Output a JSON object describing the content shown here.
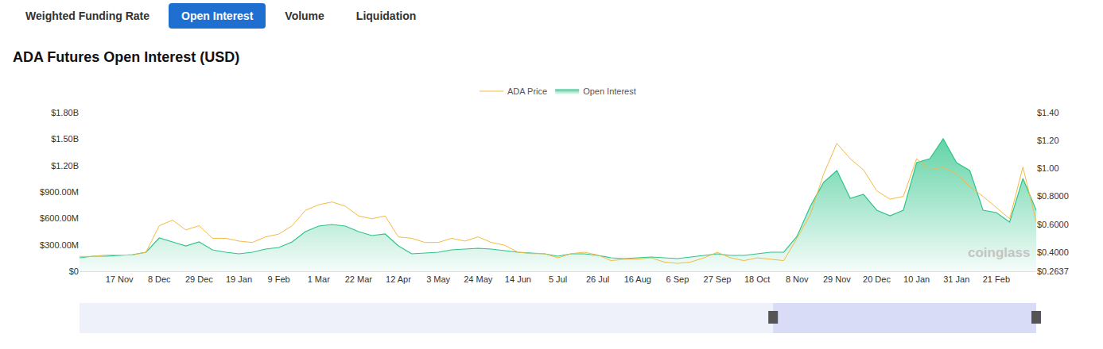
{
  "tabs": [
    "Weighted Funding Rate",
    "Open Interest",
    "Volume",
    "Liquidation"
  ],
  "active_tab": "Open Interest",
  "watermark": "coinglass",
  "chart_data": {
    "type": "line",
    "title": "ADA Futures Open Interest (USD)",
    "legend": "top",
    "grid": false,
    "categories": [
      null,
      null,
      null,
      "17 Nov",
      null,
      null,
      "8 Dec",
      null,
      null,
      "29 Dec",
      null,
      null,
      "19 Jan",
      null,
      null,
      "9 Feb",
      null,
      null,
      "1 Mar",
      null,
      null,
      "22 Mar",
      null,
      null,
      "12 Apr",
      null,
      null,
      "3 May",
      null,
      null,
      "24 May",
      null,
      null,
      "14 Jun",
      null,
      null,
      "5 Jul",
      null,
      null,
      "26 Jul",
      null,
      null,
      "16 Aug",
      null,
      null,
      "6 Sep",
      null,
      null,
      "27 Sep",
      null,
      null,
      "18 Oct",
      null,
      null,
      "8 Nov",
      null,
      null,
      "29 Nov",
      null,
      null,
      "20 Dec",
      null,
      null,
      "10 Jan",
      null,
      null,
      "31 Jan",
      null,
      null,
      "21 Feb",
      null,
      null,
      null
    ],
    "ylim": [
      0,
      1800000000
    ],
    "yticks": [
      {
        "value": 0,
        "label": "$0"
      },
      {
        "value": 300000000,
        "label": "$300.00M"
      },
      {
        "value": 600000000,
        "label": "$600.00M"
      },
      {
        "value": 900000000,
        "label": "$900.00M"
      },
      {
        "value": 1200000000,
        "label": "$1.20B"
      },
      {
        "value": 1500000000,
        "label": "$1.50B"
      },
      {
        "value": 1800000000,
        "label": "$1.80B"
      }
    ],
    "y2lim": [
      0.2637,
      1.4
    ],
    "y2ticks": [
      {
        "value": 0.2637,
        "label": "$0.2637"
      },
      {
        "value": 0.4,
        "label": "$0.4000"
      },
      {
        "value": 0.6,
        "label": "$0.6000"
      },
      {
        "value": 0.8,
        "label": "$0.8000"
      },
      {
        "value": 1,
        "label": "$1.00"
      },
      {
        "value": 1.2,
        "label": "$1.20"
      },
      {
        "value": 1.4,
        "label": "$1.40"
      }
    ],
    "series": [
      {
        "name": "ADA Price",
        "type": "line",
        "axis": "y2",
        "color": "#f5b93f",
        "values": [
          0.37,
          0.37,
          0.38,
          0.38,
          0.38,
          0.4,
          0.59,
          0.63,
          0.56,
          0.59,
          0.5,
          0.5,
          0.48,
          0.47,
          0.51,
          0.53,
          0.59,
          0.7,
          0.74,
          0.76,
          0.73,
          0.66,
          0.64,
          0.66,
          0.51,
          0.5,
          0.47,
          0.47,
          0.5,
          0.48,
          0.51,
          0.47,
          0.45,
          0.4,
          0.39,
          0.39,
          0.36,
          0.39,
          0.4,
          0.38,
          0.34,
          0.35,
          0.35,
          0.36,
          0.33,
          0.32,
          0.33,
          0.36,
          0.4,
          0.36,
          0.34,
          0.36,
          0.35,
          0.34,
          0.5,
          0.67,
          0.96,
          1.18,
          1.07,
          0.99,
          0.84,
          0.78,
          0.8,
          1.07,
          0.99,
          1.01,
          0.96,
          0.87,
          0.8,
          0.72,
          0.64,
          1.01,
          0.62
        ]
      },
      {
        "name": "Open Interest",
        "type": "area",
        "color": "#2ec48a",
        "values": [
          153000000,
          171000000,
          171000000,
          180000000,
          189000000,
          216000000,
          378000000,
          333000000,
          288000000,
          333000000,
          243000000,
          216000000,
          198000000,
          216000000,
          252000000,
          270000000,
          333000000,
          450000000,
          513000000,
          531000000,
          513000000,
          450000000,
          405000000,
          423000000,
          288000000,
          198000000,
          207000000,
          216000000,
          243000000,
          252000000,
          261000000,
          252000000,
          234000000,
          216000000,
          207000000,
          198000000,
          171000000,
          198000000,
          198000000,
          180000000,
          153000000,
          144000000,
          153000000,
          162000000,
          153000000,
          144000000,
          162000000,
          180000000,
          198000000,
          180000000,
          180000000,
          198000000,
          216000000,
          216000000,
          396000000,
          738000000,
          1008000000,
          1143000000,
          828000000,
          873000000,
          693000000,
          630000000,
          693000000,
          1233000000,
          1278000000,
          1503000000,
          1233000000,
          1143000000,
          693000000,
          666000000,
          558000000,
          1053000000,
          693000000
        ]
      }
    ]
  }
}
